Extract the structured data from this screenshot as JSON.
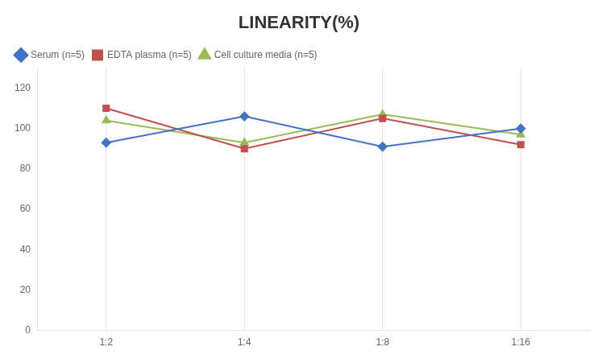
{
  "chart_data": {
    "type": "line",
    "title": "LINEARITY(%)",
    "categories": [
      "1:2",
      "1:4",
      "1:8",
      "1:16"
    ],
    "series": [
      {
        "name": "Serum (n=5)",
        "color": "#4472C4",
        "marker": "diamond",
        "values": [
          93,
          106,
          91,
          100
        ]
      },
      {
        "name": "EDTA plasma (n=5)",
        "color": "#C0504D",
        "marker": "square",
        "values": [
          110,
          90,
          105,
          92
        ]
      },
      {
        "name": "Cell culture media (n=5)",
        "color": "#9BBB59",
        "marker": "triangle",
        "values": [
          104,
          93,
          107,
          97
        ]
      }
    ],
    "ylim": [
      0,
      130
    ],
    "yticks": [
      0,
      20,
      40,
      60,
      80,
      100,
      120
    ],
    "grid": "x",
    "legend": "upper left"
  }
}
